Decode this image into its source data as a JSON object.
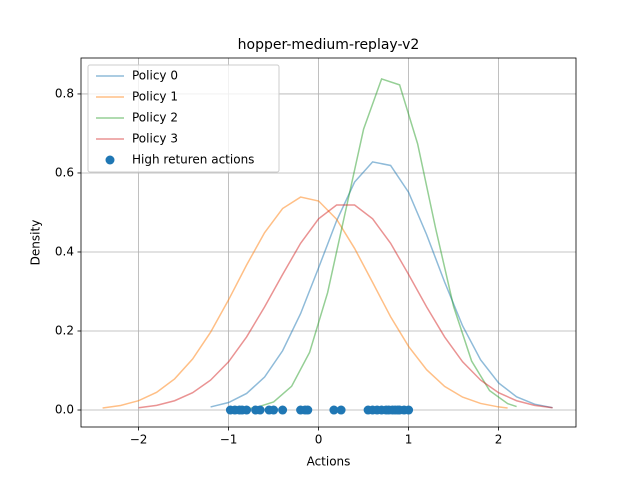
{
  "chart_data": {
    "type": "line",
    "title": "hopper-medium-replay-v2",
    "x_label": "Actions",
    "y_label": "Density",
    "xlim": [
      -2.64,
      2.86
    ],
    "ylim": [
      -0.043,
      0.891
    ],
    "xticks": [
      {
        "value": -2,
        "label": "−2"
      },
      {
        "value": -1,
        "label": "−1"
      },
      0,
      1,
      2
    ],
    "yticks": [
      {
        "value": 0,
        "label": "0.0"
      },
      0.2,
      0.4,
      0.6,
      0.8
    ],
    "grid": true,
    "legend": "upper left",
    "series": [
      {
        "name": "Policy 0",
        "color": "#1f77b4",
        "x": [
          -1.2,
          -1.0,
          -0.8,
          -0.6,
          -0.4,
          -0.2,
          0,
          0.2,
          0.4,
          0.6,
          0.8,
          1.0,
          1.2,
          1.4,
          1.6,
          1.8,
          2.0,
          2.2,
          2.4,
          2.6
        ],
        "values": [
          0.0078,
          0.019,
          0.0419,
          0.0834,
          0.15,
          0.244,
          0.36,
          0.479,
          0.577,
          0.628,
          0.619,
          0.551,
          0.444,
          0.324,
          0.213,
          0.127,
          0.0686,
          0.0334,
          0.0147,
          0.0059
        ]
      },
      {
        "name": "Policy 1",
        "color": "#ff7f0e",
        "x": [
          -2.4,
          -2.2,
          -2.0,
          -1.8,
          -1.6,
          -1.4,
          -1.2,
          -1.0,
          -0.8,
          -0.6,
          -0.4,
          -0.2,
          0,
          0.2,
          0.4,
          0.6,
          0.8,
          1.0,
          1.2,
          1.4,
          1.6,
          1.8,
          2.0,
          2.1
        ],
        "values": [
          0.0052,
          0.0115,
          0.0235,
          0.0447,
          0.0787,
          0.129,
          0.197,
          0.279,
          0.367,
          0.449,
          0.51,
          0.539,
          0.529,
          0.483,
          0.409,
          0.323,
          0.236,
          0.161,
          0.102,
          0.0598,
          0.0327,
          0.0166,
          0.0078,
          0.0052
        ]
      },
      {
        "name": "Policy 2",
        "color": "#2ca02c",
        "x": [
          -0.9,
          -0.7,
          -0.5,
          -0.3,
          -0.1,
          0.1,
          0.3,
          0.5,
          0.7,
          0.9,
          1.1,
          1.3,
          1.5,
          1.7,
          1.9,
          2.1,
          2.2
        ],
        "values": [
          0.0014,
          0.0059,
          0.0205,
          0.06,
          0.146,
          0.297,
          0.504,
          0.711,
          0.838,
          0.823,
          0.674,
          0.46,
          0.262,
          0.124,
          0.0491,
          0.0162,
          0.0087
        ]
      },
      {
        "name": "Policy 3",
        "color": "#d62728",
        "x": [
          -2.0,
          -1.8,
          -1.6,
          -1.4,
          -1.2,
          -1.0,
          -0.8,
          -0.6,
          -0.4,
          -0.2,
          0,
          0.2,
          0.4,
          0.6,
          0.8,
          1.0,
          1.2,
          1.4,
          1.6,
          1.8,
          2.0,
          2.2,
          2.4,
          2.6
        ],
        "values": [
          0.0056,
          0.0118,
          0.0235,
          0.0437,
          0.0757,
          0.122,
          0.185,
          0.261,
          0.343,
          0.422,
          0.484,
          0.519,
          0.519,
          0.484,
          0.422,
          0.343,
          0.261,
          0.185,
          0.122,
          0.0757,
          0.0437,
          0.0235,
          0.0118,
          0.0056
        ]
      }
    ],
    "scatter": {
      "name": "High returen actions",
      "color": "#1f77b4",
      "x": [
        -0.98,
        -0.93,
        -0.88,
        -0.85,
        -0.8,
        -0.7,
        -0.65,
        -0.55,
        -0.5,
        -0.4,
        -0.2,
        -0.15,
        -0.12,
        0.17,
        0.25,
        0.55,
        0.6,
        0.65,
        0.7,
        0.75,
        0.78,
        0.82,
        0.85,
        0.88,
        0.9,
        0.95,
        1.0
      ],
      "values": [
        0,
        0,
        0,
        0,
        0,
        0,
        0,
        0,
        0,
        0,
        0,
        0,
        0,
        0,
        0,
        0,
        0,
        0,
        0,
        0,
        0,
        0,
        0,
        0,
        0,
        0,
        0
      ]
    }
  }
}
